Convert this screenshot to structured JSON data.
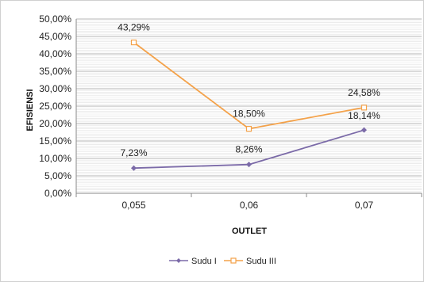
{
  "chart_data": {
    "type": "line",
    "title": "",
    "xlabel": "OUTLET",
    "ylabel": "EFISIENSI",
    "categories": [
      "0,055",
      "0,06",
      "0,07"
    ],
    "ylim": [
      0,
      50
    ],
    "ytick_step": 5,
    "ytick_labels": [
      "0,00%",
      "5,00%",
      "10,00%",
      "15,00%",
      "20,00%",
      "25,00%",
      "30,00%",
      "35,00%",
      "40,00%",
      "45,00%",
      "50,00%"
    ],
    "minor_grid_step": 0.5,
    "grid": true,
    "legend_position": "bottom",
    "series": [
      {
        "name": "Sudu I",
        "values": [
          7.23,
          8.26,
          18.14
        ],
        "labels": [
          "7,23%",
          "8,26%",
          "18,14%"
        ],
        "color": "#7b6aa8",
        "marker": "diamond"
      },
      {
        "name": "Sudu III",
        "values": [
          43.29,
          18.5,
          24.58
        ],
        "labels": [
          "43,29%",
          "18,50%",
          "24,58%"
        ],
        "color": "#f4a24a",
        "marker": "square"
      }
    ]
  }
}
